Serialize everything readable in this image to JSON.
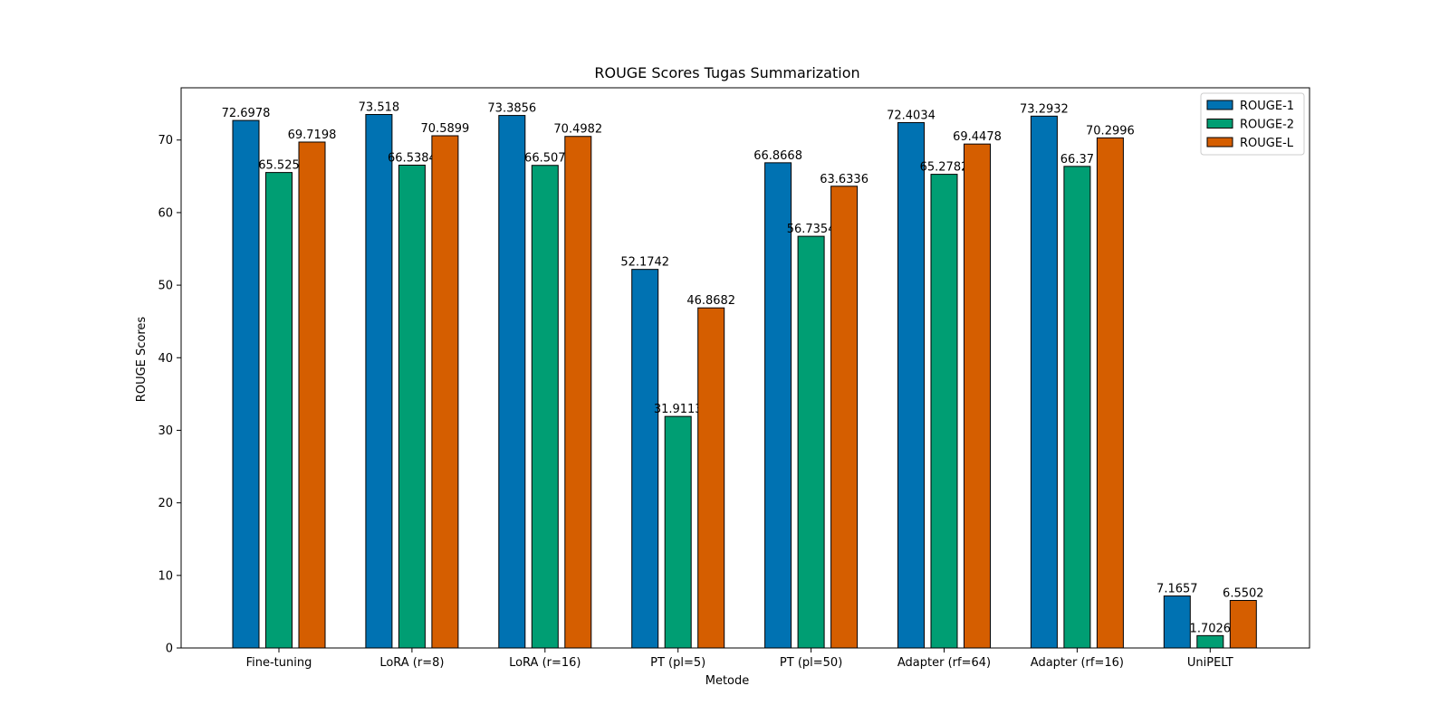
{
  "chart_data": {
    "type": "bar",
    "title": "ROUGE Scores Tugas Summarization",
    "xlabel": "Metode",
    "ylabel": "ROUGE Scores",
    "categories": [
      "Fine-tuning",
      "LoRA (r=8)",
      "LoRA (r=16)",
      "PT (pl=5)",
      "PT (pl=50)",
      "Adapter (rf=64)",
      "Adapter (rf=16)",
      "UniPELT"
    ],
    "series": [
      {
        "name": "ROUGE-1",
        "color": "#0072B2",
        "values": [
          72.6978,
          73.518,
          73.3856,
          52.1742,
          66.8668,
          72.4034,
          73.2932,
          7.1657
        ],
        "labels": [
          "72.6978",
          "73.518",
          "73.3856",
          "52.1742",
          "66.8668",
          "72.4034",
          "73.2932",
          "7.1657"
        ]
      },
      {
        "name": "ROUGE-2",
        "color": "#009E73",
        "values": [
          65.525,
          66.5384,
          66.507,
          31.9113,
          56.7354,
          65.2782,
          66.37,
          1.7026
        ],
        "labels": [
          "65.525",
          "66.5384",
          "66.507",
          "31.9113",
          "56.7354",
          "65.2782",
          "66.37",
          "1.7026"
        ]
      },
      {
        "name": "ROUGE-L",
        "color": "#D55E00",
        "values": [
          69.7198,
          70.5899,
          70.4982,
          46.8682,
          63.6336,
          69.4478,
          70.2996,
          6.5502
        ],
        "labels": [
          "69.7198",
          "70.5899",
          "70.4982",
          "46.8682",
          "63.6336",
          "69.4478",
          "70.2996",
          "6.5502"
        ]
      }
    ],
    "ylim": [
      0,
      77.2
    ],
    "yticks": [
      0,
      10,
      20,
      30,
      40,
      50,
      60,
      70
    ],
    "grid": false,
    "legend": "top-right"
  }
}
